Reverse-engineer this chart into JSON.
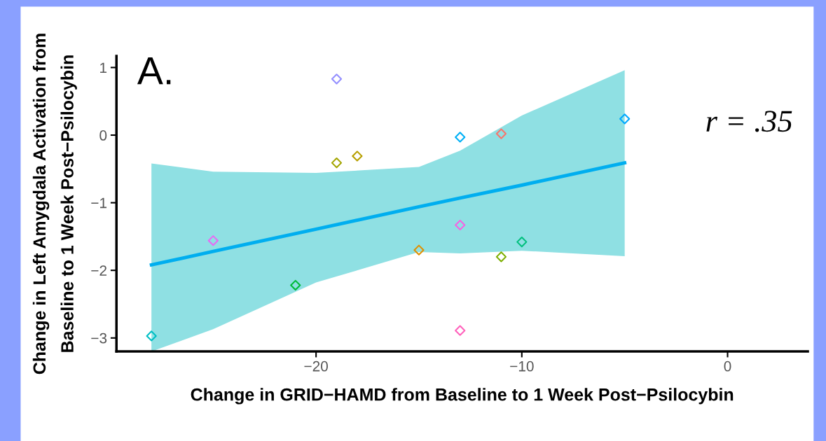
{
  "chart_data": {
    "type": "scatter",
    "xlabel": "Change in GRID−HAMD from Baseline to 1 Week Post−Psilocybin",
    "ylabel": "Change in Left Amygdala Activation from\nBaseline to 1 Week Post−Psilocybin",
    "annotations": [
      "A.",
      "r = .35"
    ],
    "xlim": [
      -29.7,
      3.9
    ],
    "xticks": [
      {
        "value": -20,
        "label": "−20"
      },
      {
        "value": -10,
        "label": "−10"
      },
      0
    ],
    "ylim": [
      -3.2,
      1.17
    ],
    "yticks": [
      1,
      0,
      {
        "value": -1,
        "label": "−1"
      },
      {
        "value": -2,
        "label": "−2"
      },
      {
        "value": -3,
        "label": "−3"
      }
    ],
    "grid": false,
    "legend": false,
    "series": [
      {
        "type": "line",
        "x": [
          -28,
          -25,
          -20,
          -15,
          -13,
          -10,
          -5
        ],
        "values": [
          -1.92,
          -1.72,
          -1.39,
          -1.06,
          -0.93,
          -0.74,
          -0.41
        ],
        "lower": [
          -3.2,
          -2.87,
          -2.18,
          -1.73,
          -1.75,
          -1.71,
          -1.79
        ],
        "upper": [
          -0.42,
          -0.54,
          -0.56,
          -0.47,
          -0.23,
          0.29,
          0.96
        ],
        "color": "#00aeef",
        "marker": "none",
        "line_style": "solid"
      },
      {
        "marker": "diamond",
        "x": [
          -28,
          -25,
          -21,
          -19,
          -19,
          -18,
          -15,
          -13,
          -13,
          -13,
          -11,
          -11,
          -10,
          -5
        ],
        "values": [
          -2.97,
          -1.56,
          -2.22,
          0.83,
          -0.41,
          -0.31,
          -1.7,
          -0.03,
          -1.33,
          -2.89,
          0.02,
          -1.8,
          -1.58,
          0.24
        ],
        "colors": [
          "#00bfc4",
          "#e76bf3",
          "#00ba38",
          "#9590ff",
          "#a3a500",
          "#b79f00",
          "#e09000",
          "#00b0f6",
          "#f564e3",
          "#ff62bc",
          "#f8766d",
          "#7cae00",
          "#00bf7d",
          "#00a9ff"
        ]
      }
    ]
  }
}
